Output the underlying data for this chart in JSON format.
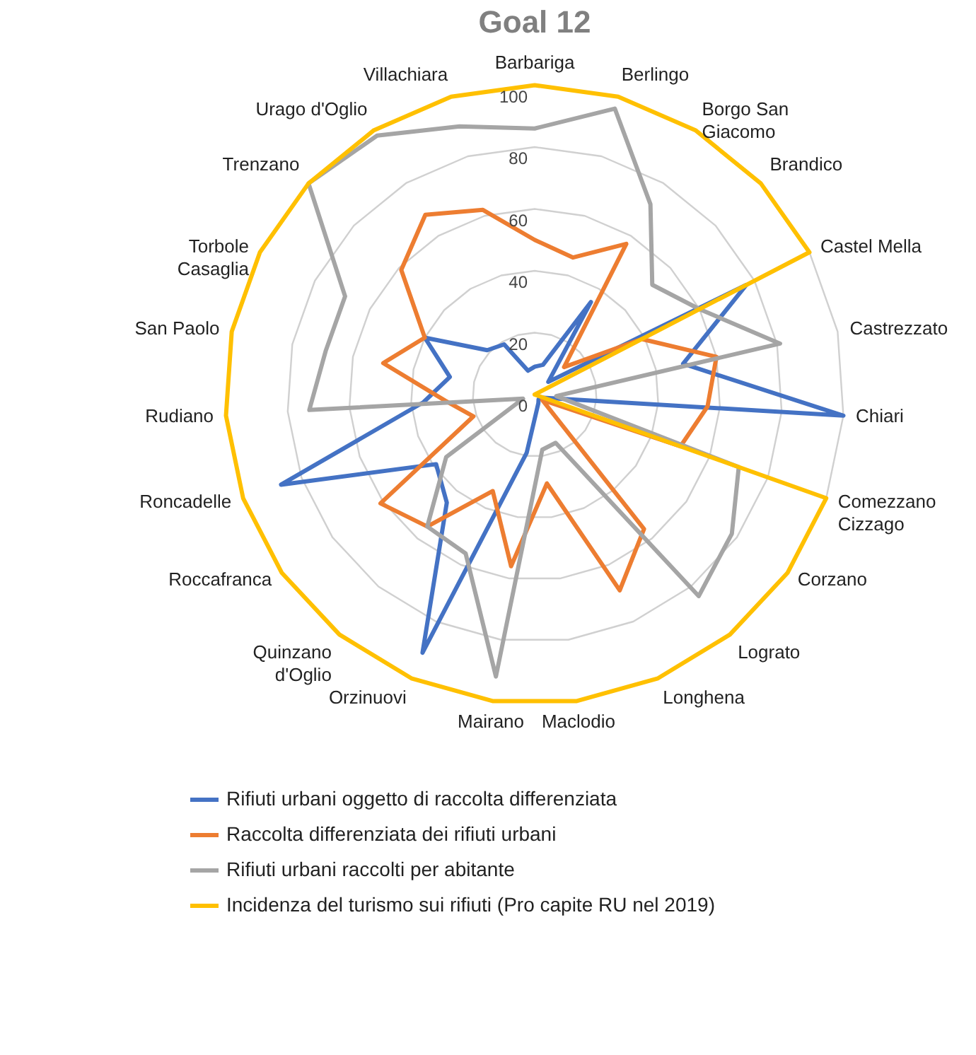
{
  "chart_data": {
    "type": "radar",
    "title": "Goal 12",
    "categories": [
      "Barbariga",
      "Berlingo",
      "Borgo San Giacomo",
      "Brandico",
      "Castel Mella",
      "Castrezzato",
      "Chiari",
      "Comezzano Cizzago",
      "Corzano",
      "Lograto",
      "Longhena",
      "Maclodio",
      "Mairano",
      "Orzinuovi",
      "Quinzano d'Oglio",
      "Roccafranca",
      "Roncadelle",
      "Rudiano",
      "San Paolo",
      "Torbole Casaglia",
      "Trenzano",
      "Urago d'Oglio",
      "Villachiara"
    ],
    "series": [
      {
        "name": "Rifiuti urbani oggetto di raccolta differenziata",
        "color": "#4472c4",
        "values": [
          9,
          10,
          35,
          6,
          77,
          49,
          100,
          3,
          2,
          2,
          3,
          5,
          19,
          91,
          45,
          39,
          87,
          36,
          28,
          40,
          21,
          19,
          8
        ]
      },
      {
        "name": "Raccolta differenziata dei rifiuti urbani",
        "color": "#ed7d31",
        "values": [
          50,
          46,
          57,
          13,
          39,
          60,
          56,
          50,
          3,
          56,
          69,
          29,
          56,
          34,
          55,
          61,
          21,
          29,
          50,
          40,
          59,
          68,
          62
        ]
      },
      {
        "name": "Rifiuti urbani raccolti per abitante",
        "color": "#a5a5a5",
        "values": [
          86,
          96,
          72,
          52,
          60,
          81,
          7,
          70,
          78,
          84,
          17,
          18,
          92,
          56,
          55,
          35,
          4,
          73,
          69,
          69,
          100,
          98,
          90
        ]
      },
      {
        "name": "Incidenza del turismo sui rifiuti (Pro capite RU nel 2019)",
        "color": "#ffc000",
        "values": [
          100,
          100,
          100,
          100,
          100,
          0,
          0,
          100,
          100,
          100,
          100,
          100,
          100,
          100,
          100,
          100,
          100,
          100,
          100,
          100,
          100,
          100,
          100
        ]
      }
    ],
    "ylim": [
      0,
      100
    ],
    "yticks": [
      0,
      20,
      40,
      60,
      80,
      100
    ],
    "grid": true,
    "legend": "bottom"
  }
}
